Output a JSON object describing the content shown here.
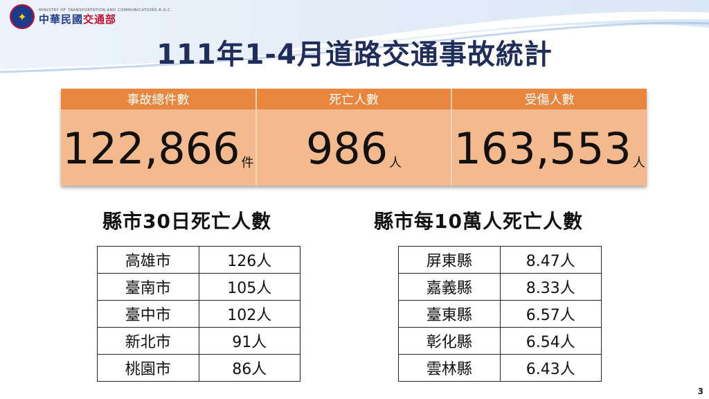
{
  "header": {
    "org_en": "MINISTRY OF TRANSPORTATION AND COMMUNICATIONS R.O.C.",
    "org_zh_a": "中華民國",
    "org_zh_b": "交通部"
  },
  "title": "111年1-4月道路交通事故統計",
  "stats": [
    {
      "label": "事故總件數",
      "value": "122,866",
      "unit": "件"
    },
    {
      "label": "死亡人數",
      "value": "986",
      "unit": "人"
    },
    {
      "label": "受傷人數",
      "value": "163,553",
      "unit": "人"
    }
  ],
  "left_table": {
    "title": "縣市30日死亡人數",
    "rows": [
      {
        "county": "高雄市",
        "value": "126人"
      },
      {
        "county": "臺南市",
        "value": "105人"
      },
      {
        "county": "臺中市",
        "value": "102人"
      },
      {
        "county": "新北市",
        "value": "91人"
      },
      {
        "county": "桃園市",
        "value": "86人"
      }
    ]
  },
  "right_table": {
    "title": "縣市每10萬人死亡人數",
    "rows": [
      {
        "county": "屏東縣",
        "value": "8.47人"
      },
      {
        "county": "嘉義縣",
        "value": "8.33人"
      },
      {
        "county": "臺東縣",
        "value": "6.57人"
      },
      {
        "county": "彰化縣",
        "value": "6.54人"
      },
      {
        "county": "雲林縣",
        "value": "6.43人"
      }
    ]
  },
  "page_number": "3",
  "colors": {
    "header_orange": "#e8863e",
    "body_orange": "#f4b98d",
    "title_navy": "#1f2d5a"
  }
}
